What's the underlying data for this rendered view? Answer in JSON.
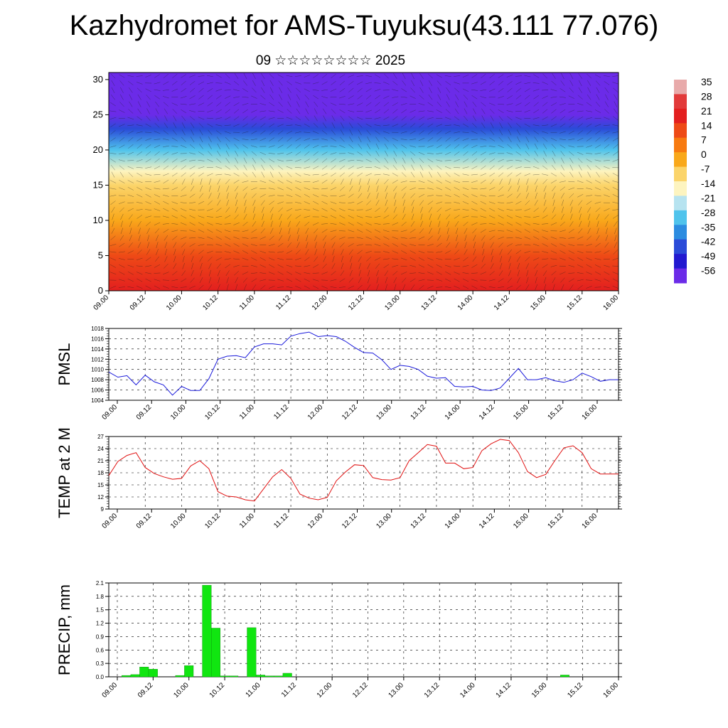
{
  "header": {
    "title": "Kazhydromet for AMS-Tuyuksu(43.111 77.076)",
    "subtitle": "09 ☆☆☆☆☆☆☆☆ 2025"
  },
  "colors": {
    "pmsl_line": "#1a1adb",
    "temp_line": "#e01010",
    "precip_bar": "#10e610",
    "frame": "#000000"
  },
  "chart_data": [
    {
      "id": "cross_section",
      "type": "heatmap",
      "title": "",
      "xlabel": "",
      "ylabel": "",
      "x_tick_labels": [
        "09.00",
        "09.12",
        "10.00",
        "10.12",
        "11.00",
        "11.12",
        "12.00",
        "12.12",
        "13.00",
        "13.12",
        "14.00",
        "14.12",
        "15.00",
        "15.12",
        "16.00"
      ],
      "y_ticks": [
        0,
        5,
        10,
        15,
        20,
        25,
        30
      ],
      "ylim": [
        0,
        31
      ],
      "colorbar_labels": [
        "35",
        "28",
        "21",
        "14",
        "7",
        "0",
        "-7",
        "-14",
        "-21",
        "-28",
        "-35",
        "-42",
        "-49",
        "-56"
      ],
      "colorbar_colors": [
        "#e8aaaa",
        "#e23a3a",
        "#e31f1f",
        "#ee4a16",
        "#f77a10",
        "#f9a81a",
        "#fbd46a",
        "#fdf4c0",
        "#b6e3f0",
        "#4fc3ec",
        "#2c8ce0",
        "#2a4bd8",
        "#2219d0",
        "#6b2be8"
      ],
      "temperature_profile": [
        {
          "level": 0,
          "temp": 20
        },
        {
          "level": 5,
          "temp": 12
        },
        {
          "level": 10,
          "temp": 3
        },
        {
          "level": 15,
          "temp": -8
        },
        {
          "level": 17,
          "temp": -14
        },
        {
          "level": 20,
          "temp": -30
        },
        {
          "level": 23,
          "temp": -42
        },
        {
          "level": 25,
          "temp": -55
        },
        {
          "level": 28,
          "temp": -56
        },
        {
          "level": 31,
          "temp": -56
        }
      ]
    },
    {
      "id": "pmsl",
      "type": "line",
      "ylabel": "PMSL",
      "ylim": [
        1004,
        1018
      ],
      "y_ticks": [
        1004,
        1006,
        1008,
        1010,
        1012,
        1014,
        1016,
        1018
      ],
      "x_tick_labels": [
        "09.00",
        "09.12",
        "10.00",
        "10.12",
        "11.00",
        "11.12",
        "12.00",
        "12.12",
        "13.00",
        "13.12",
        "14.00",
        "14.12",
        "15.00",
        "15.12",
        "16.00"
      ],
      "x_hours": [
        0,
        3,
        6,
        9,
        12,
        15,
        18,
        21,
        24,
        27,
        30,
        33,
        36,
        39,
        42,
        45,
        48,
        51,
        54,
        57,
        60,
        63,
        66,
        69,
        72,
        75,
        78,
        81,
        84,
        87,
        90,
        93,
        96,
        99,
        102,
        105,
        108,
        111,
        114,
        117,
        120,
        123,
        126,
        129,
        132,
        135,
        138,
        141,
        144,
        147,
        150,
        153,
        156,
        159,
        162,
        165,
        168
      ],
      "values": [
        1009.5,
        1008.5,
        1008.8,
        1007.0,
        1008.9,
        1007.6,
        1007.0,
        1005.0,
        1006.7,
        1005.9,
        1005.9,
        1008.2,
        1012.0,
        1012.6,
        1012.7,
        1012.3,
        1014.4,
        1015.0,
        1015.0,
        1014.8,
        1016.5,
        1017.0,
        1017.3,
        1016.4,
        1016.6,
        1016.4,
        1015.5,
        1014.3,
        1013.3,
        1013.2,
        1011.9,
        1010.0,
        1010.8,
        1010.6,
        1010.0,
        1008.7,
        1008.3,
        1008.4,
        1006.7,
        1006.6,
        1006.7,
        1006.0,
        1005.9,
        1006.4,
        1008.3,
        1010.2,
        1008.0,
        1008.0,
        1008.4,
        1007.8,
        1007.5,
        1008.0,
        1009.3,
        1008.6,
        1007.7,
        1008.0,
        1008.0
      ]
    },
    {
      "id": "temp2m",
      "type": "line",
      "ylabel": "TEMP at 2 M",
      "ylim": [
        9,
        27
      ],
      "y_ticks": [
        9,
        12,
        15,
        18,
        21,
        24,
        27
      ],
      "x_tick_labels": [
        "09.00",
        "09.12",
        "10.00",
        "10.12",
        "11.00",
        "11.12",
        "12.00",
        "12.12",
        "13.00",
        "13.12",
        "14.00",
        "14.12",
        "15.00",
        "15.12",
        "16.00"
      ],
      "x_hours": [
        0,
        3,
        6,
        9,
        12,
        15,
        18,
        21,
        24,
        27,
        30,
        33,
        36,
        39,
        42,
        45,
        48,
        51,
        54,
        57,
        60,
        63,
        66,
        69,
        72,
        75,
        78,
        81,
        84,
        87,
        90,
        93,
        96,
        99,
        102,
        105,
        108,
        111,
        114,
        117,
        120,
        123,
        126,
        129,
        132,
        135,
        138,
        141,
        144,
        147,
        150,
        153,
        156,
        159,
        162,
        165,
        168
      ],
      "values": [
        17.3,
        20.8,
        22.3,
        23.0,
        19.3,
        17.8,
        17.0,
        16.4,
        16.6,
        19.7,
        21.0,
        19.0,
        13.3,
        12.2,
        12.0,
        11.3,
        11.0,
        14.0,
        17.0,
        18.8,
        16.6,
        12.7,
        11.7,
        11.3,
        11.9,
        16.0,
        18.2,
        20.0,
        19.8,
        16.8,
        16.3,
        16.2,
        16.8,
        21.0,
        23.0,
        25.0,
        24.6,
        20.4,
        20.4,
        19.0,
        19.3,
        23.5,
        25.2,
        26.3,
        26.0,
        23.0,
        18.3,
        16.8,
        17.6,
        21.0,
        24.2,
        24.7,
        23.0,
        19.0,
        17.7,
        17.7,
        17.7
      ]
    },
    {
      "id": "precip",
      "type": "bar",
      "ylabel": "PRECIP, mm",
      "ylim": [
        0,
        2.1
      ],
      "y_ticks": [
        "0.0",
        "0.3",
        "0.6",
        "0.9",
        "1.2",
        "1.5",
        "1.8",
        "2.1"
      ],
      "x_tick_labels": [
        "09.00",
        "09.12",
        "10.00",
        "10.12",
        "11.00",
        "11.12",
        "12.00",
        "12.12",
        "13.00",
        "13.12",
        "14.00",
        "14.12",
        "15.00",
        "15.12",
        "16.00"
      ],
      "bar_width_hours": 3,
      "bars": [
        {
          "hour": 3,
          "value": 0.03
        },
        {
          "hour": 6,
          "value": 0.05
        },
        {
          "hour": 9,
          "value": 0.22
        },
        {
          "hour": 12,
          "value": 0.17
        },
        {
          "hour": 21,
          "value": 0.03
        },
        {
          "hour": 24,
          "value": 0.25
        },
        {
          "hour": 30,
          "value": 2.05
        },
        {
          "hour": 33,
          "value": 1.09
        },
        {
          "hour": 36,
          "value": 0.02
        },
        {
          "hour": 39,
          "value": 0.02
        },
        {
          "hour": 45,
          "value": 1.1
        },
        {
          "hour": 48,
          "value": 0.04
        },
        {
          "hour": 51,
          "value": 0.02
        },
        {
          "hour": 54,
          "value": 0.02
        },
        {
          "hour": 57,
          "value": 0.08
        },
        {
          "hour": 150,
          "value": 0.04
        }
      ]
    }
  ]
}
